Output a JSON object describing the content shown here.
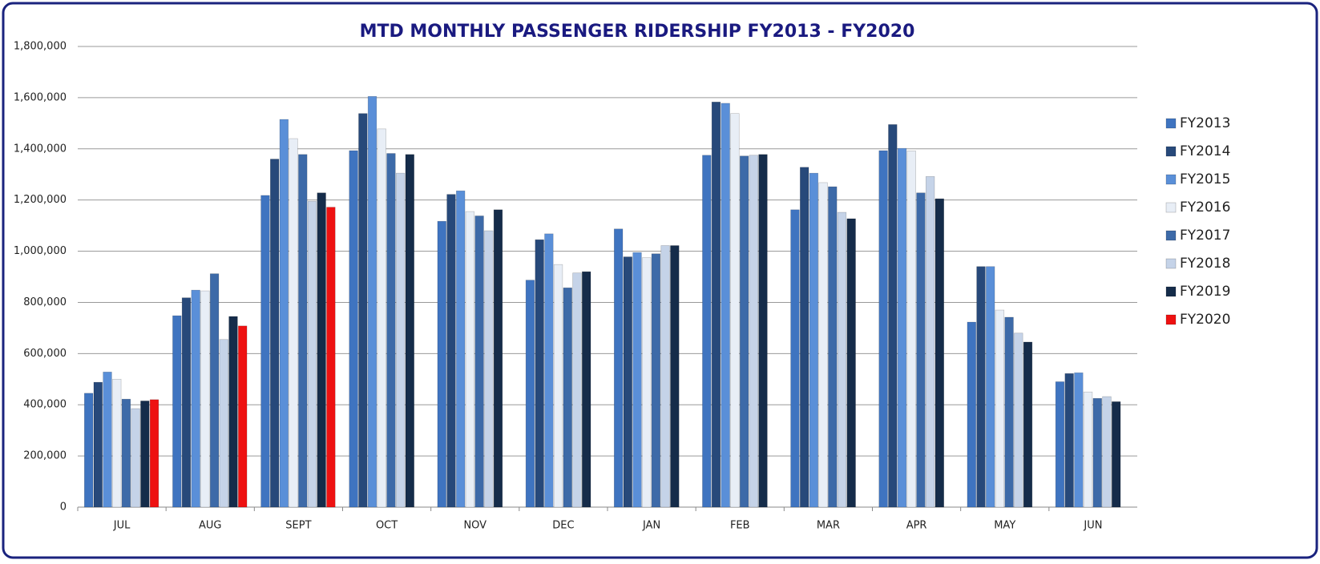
{
  "chart_data": {
    "type": "bar",
    "title": "MTD MONTHLY PASSENGER RIDERSHIP FY2013 - FY2020",
    "categories": [
      "JUL",
      "AUG",
      "SEPT",
      "OCT",
      "NOV",
      "DEC",
      "JAN",
      "FEB",
      "MAR",
      "APR",
      "MAY",
      "JUN"
    ],
    "series": [
      {
        "name": "FY2013",
        "color": "#3f74c0",
        "values": [
          445000,
          748000,
          1218000,
          1393000,
          1117000,
          887000,
          1087000,
          1375000,
          1162000,
          1393000,
          723000,
          490000
        ]
      },
      {
        "name": "FY2014",
        "color": "#27497a",
        "values": [
          488000,
          818000,
          1360000,
          1538000,
          1222000,
          1045000,
          978000,
          1583000,
          1328000,
          1495000,
          940000,
          522000
        ]
      },
      {
        "name": "FY2015",
        "color": "#5a8fd8",
        "values": [
          528000,
          848000,
          1515000,
          1605000,
          1236000,
          1068000,
          995000,
          1578000,
          1305000,
          1402000,
          940000,
          525000
        ]
      },
      {
        "name": "FY2016",
        "color": "#e8eef6",
        "values": [
          500000,
          845000,
          1440000,
          1478000,
          1155000,
          948000,
          975000,
          1538000,
          1268000,
          1392000,
          770000,
          450000
        ]
      },
      {
        "name": "FY2017",
        "color": "#3d6aa8",
        "values": [
          422000,
          912000,
          1378000,
          1382000,
          1138000,
          857000,
          990000,
          1372000,
          1252000,
          1228000,
          742000,
          425000
        ]
      },
      {
        "name": "FY2018",
        "color": "#c5d3e8",
        "values": [
          385000,
          655000,
          1195000,
          1305000,
          1080000,
          915000,
          1022000,
          1375000,
          1152000,
          1292000,
          680000,
          432000
        ]
      },
      {
        "name": "FY2019",
        "color": "#152c4a",
        "values": [
          415000,
          745000,
          1228000,
          1378000,
          1162000,
          920000,
          1022000,
          1378000,
          1127000,
          1205000,
          645000,
          412000
        ]
      },
      {
        "name": "FY2020",
        "color": "#ee1111",
        "values": [
          420000,
          708000,
          1172000,
          null,
          null,
          null,
          null,
          null,
          null,
          null,
          null,
          null
        ]
      }
    ],
    "ylim": [
      0,
      1800000
    ],
    "yticks": [
      0,
      {
        "value": 200000,
        "label": "200,000"
      },
      {
        "value": 400000,
        "label": "400,000"
      },
      {
        "value": 600000,
        "label": "600,000"
      },
      {
        "value": 800000,
        "label": "800,000"
      },
      {
        "value": 1000000,
        "label": "1,000,000"
      },
      {
        "value": 1200000,
        "label": "1,200,000"
      },
      {
        "value": 1400000,
        "label": "1,400,000"
      },
      {
        "value": 1600000,
        "label": "1,600,000"
      },
      {
        "value": 1800000,
        "label": "1,800,000"
      }
    ],
    "grid": true,
    "legend": "right"
  }
}
